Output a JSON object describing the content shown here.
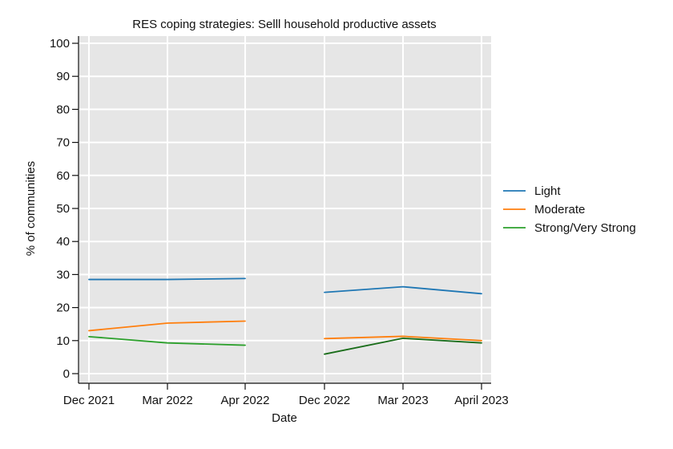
{
  "chart_data": {
    "type": "line",
    "title": "RES coping strategies: Selll household productive assets",
    "xlabel": "Date",
    "ylabel": "% of communities",
    "categories": [
      "Dec 2021",
      "Mar 2022",
      "Apr 2022",
      "Dec 2022",
      "Mar 2023",
      "April 2023"
    ],
    "y_ticks": [
      0,
      10,
      20,
      30,
      40,
      50,
      60,
      70,
      80,
      90,
      100
    ],
    "ylim": [
      0,
      100
    ],
    "grid": true,
    "legend_position": "right",
    "series": [
      {
        "name": "Light",
        "color": "#1f77b4",
        "segments": [
          {
            "x": [
              "Dec 2021",
              "Mar 2022",
              "Apr 2022"
            ],
            "values": [
              28.5,
              28.5,
              28.8
            ]
          },
          {
            "x": [
              "Dec 2022",
              "Mar 2023",
              "April 2023"
            ],
            "values": [
              24.6,
              26.3,
              24.2
            ]
          }
        ]
      },
      {
        "name": "Moderate",
        "color": "#ff7f0e",
        "segments": [
          {
            "x": [
              "Dec 2021",
              "Mar 2022",
              "Apr 2022"
            ],
            "values": [
              13.0,
              15.3,
              15.9
            ]
          },
          {
            "x": [
              "Dec 2022",
              "Mar 2023",
              "April 2023"
            ],
            "values": [
              10.6,
              11.3,
              10.0
            ]
          }
        ]
      },
      {
        "name": "Strong/Very Strong",
        "color": "#2ca02c",
        "segments": [
          {
            "x": [
              "Dec 2021",
              "Mar 2022",
              "Apr 2022"
            ],
            "values": [
              11.2,
              9.3,
              8.6
            ],
            "color": "#2ca02c"
          },
          {
            "x": [
              "Dec 2022",
              "Mar 2023",
              "April 2023"
            ],
            "values": [
              5.9,
              10.7,
              9.3
            ],
            "color": "#1a6d1a"
          }
        ]
      }
    ]
  }
}
